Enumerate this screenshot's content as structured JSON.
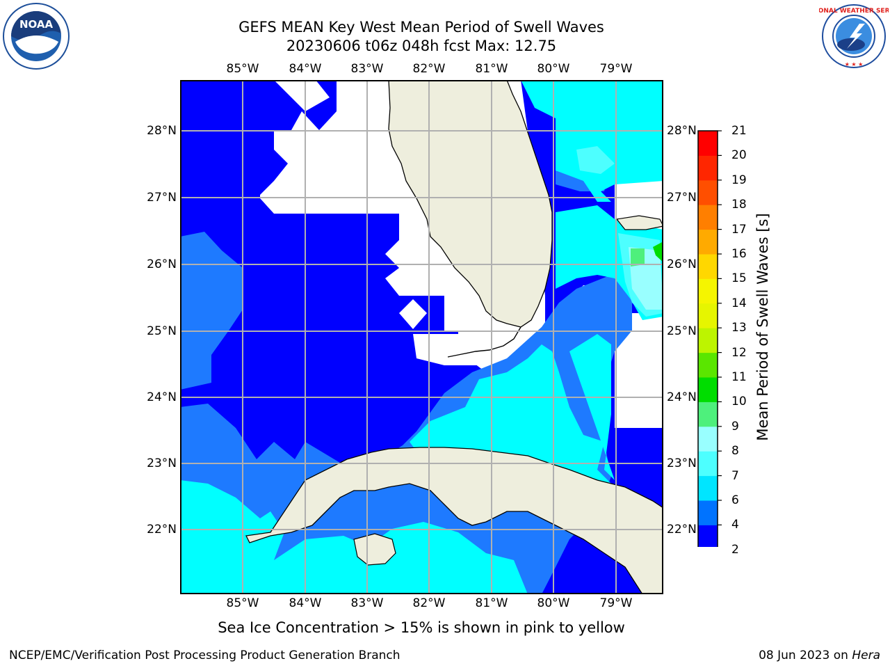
{
  "title_line1": "GEFS MEAN Key West Mean Period of Swell Waves",
  "title_line2": "20230606 t06z 048h fcst   Max: 12.75",
  "lon_labels": [
    "85°W",
    "84°W",
    "83°W",
    "82°W",
    "81°W",
    "80°W",
    "79°W"
  ],
  "lat_labels": [
    "28°N",
    "27°N",
    "26°N",
    "25°N",
    "24°N",
    "23°N",
    "22°N"
  ],
  "colorbar": {
    "label": "Mean Period of Swell Waves [s]",
    "ticks": [
      "2",
      "4",
      "6",
      "7",
      "8",
      "9",
      "10",
      "11",
      "12",
      "13",
      "14",
      "15",
      "16",
      "17",
      "18",
      "19",
      "20",
      "21"
    ],
    "colors": [
      "#0000ff",
      "#0073ff",
      "#00e5ff",
      "#4dffff",
      "#99ffff",
      "#4ef07c",
      "#00dd00",
      "#5ae600",
      "#bdf400",
      "#e6f500",
      "#f5f500",
      "#ffd700",
      "#ffaa00",
      "#ff7f00",
      "#ff4f00",
      "#ff2600",
      "#ff0000"
    ]
  },
  "field_colors": {
    "lt2": "#0000ff",
    "b2_4": "#1e7aff",
    "b4_6": "#00ffff",
    "b6_7": "#4dffff",
    "b7_8": "#99ffff",
    "land": "#eeeedd"
  },
  "subtitle": "Sea Ice Concentration > 15% is shown in pink to yellow",
  "footer_left": "NCEP/EMC/Verification Post Processing Product Generation Branch",
  "footer_right_date": "08 Jun 2023 on",
  "footer_right_host": "Hera",
  "logos": {
    "noaa_text": "NOAA",
    "nws_text": "NATIONAL WEATHER SERVICE"
  }
}
